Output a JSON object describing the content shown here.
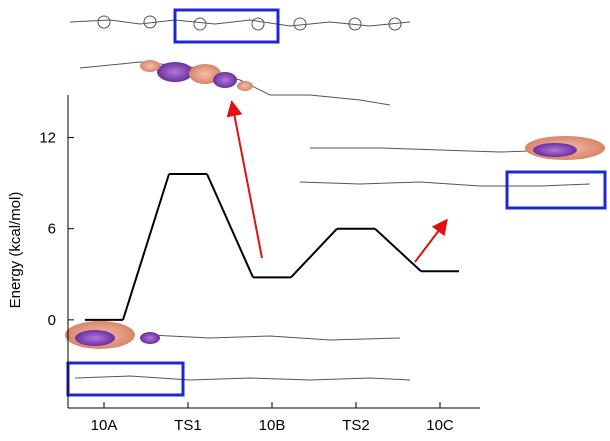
{
  "chart_data": {
    "type": "line",
    "y_label": "Energy (kcal/mol)",
    "categories": [
      "10A",
      "TS1",
      "10B",
      "TS2",
      "10C"
    ],
    "values": [
      0,
      9.6,
      2.8,
      6.0,
      3.2
    ],
    "color": "#000000",
    "ylim": [
      -5.8,
      14.8
    ],
    "yticks": [
      0,
      6,
      12
    ]
  }
}
